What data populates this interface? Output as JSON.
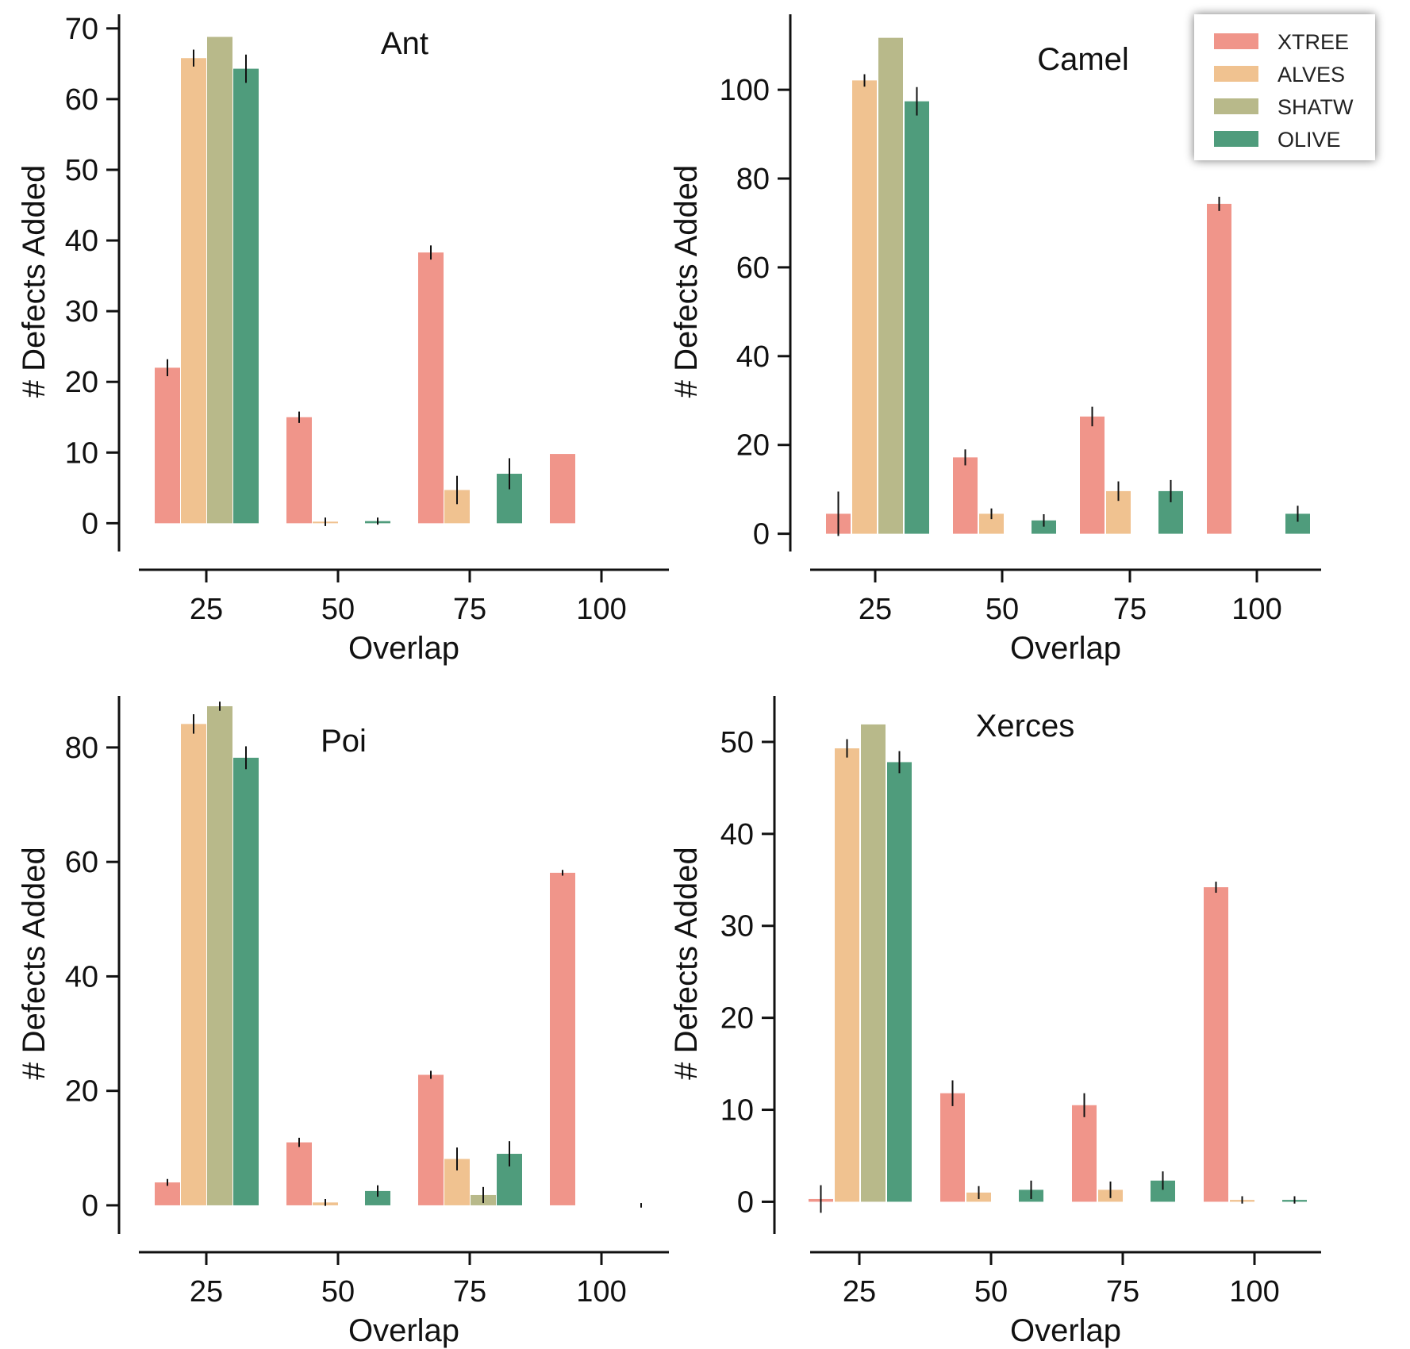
{
  "colors": {
    "XTREE": "#f0958a",
    "ALVES": "#f0c290",
    "SHATW": "#b8b98a",
    "OLIVE": "#4f9c7c"
  },
  "legend": {
    "placement": "top-right",
    "entries": [
      "XTREE",
      "ALVES",
      "SHATW",
      "OLIVE"
    ]
  },
  "chart_data": [
    {
      "type": "bar",
      "title": "Ant",
      "xlabel": "Overlap",
      "ylabel": "# Defects Added",
      "categories": [
        "25",
        "50",
        "75",
        "100"
      ],
      "ylim": [
        -4,
        72
      ],
      "yticks": [
        0,
        10,
        20,
        30,
        40,
        50,
        60,
        70
      ],
      "series": [
        {
          "name": "XTREE",
          "values": [
            22,
            15,
            38.3,
            9.8
          ],
          "errors": [
            1.2,
            0.8,
            1.0,
            0
          ]
        },
        {
          "name": "ALVES",
          "values": [
            65.8,
            0.2,
            4.7,
            null
          ],
          "errors": [
            1.2,
            0.6,
            2.0,
            0
          ]
        },
        {
          "name": "SHATW",
          "values": [
            68.8,
            null,
            null,
            null
          ],
          "errors": [
            0,
            0,
            0,
            0
          ]
        },
        {
          "name": "OLIVE",
          "values": [
            64.3,
            0.3,
            7.0,
            null
          ],
          "errors": [
            2.0,
            0.5,
            2.2,
            0
          ]
        }
      ]
    },
    {
      "type": "bar",
      "title": "Camel",
      "xlabel": "Overlap",
      "ylabel": "# Defects Added",
      "categories": [
        "25",
        "50",
        "75",
        "100"
      ],
      "ylim": [
        -4,
        117
      ],
      "yticks": [
        0,
        20,
        40,
        60,
        80,
        100
      ],
      "series": [
        {
          "name": "XTREE",
          "values": [
            4.5,
            17.2,
            26.4,
            74.3
          ],
          "errors": [
            5.0,
            1.8,
            2.2,
            1.6
          ]
        },
        {
          "name": "ALVES",
          "values": [
            102.1,
            4.5,
            9.6,
            null
          ],
          "errors": [
            1.4,
            1.2,
            2.2,
            0
          ]
        },
        {
          "name": "SHATW",
          "values": [
            111.7,
            null,
            null,
            null
          ],
          "errors": [
            0,
            0,
            0,
            0
          ]
        },
        {
          "name": "OLIVE",
          "values": [
            97.4,
            3.0,
            9.6,
            4.5
          ],
          "errors": [
            3.2,
            1.4,
            2.5,
            1.8
          ]
        }
      ]
    },
    {
      "type": "bar",
      "title": "Poi",
      "xlabel": "Overlap",
      "ylabel": "# Defects Added",
      "categories": [
        "25",
        "50",
        "75",
        "100"
      ],
      "ylim": [
        -5,
        89
      ],
      "yticks": [
        0,
        20,
        40,
        60,
        80
      ],
      "series": [
        {
          "name": "XTREE",
          "values": [
            4.0,
            11.0,
            22.8,
            58.1
          ],
          "errors": [
            0.6,
            0.8,
            0.7,
            0.5
          ]
        },
        {
          "name": "ALVES",
          "values": [
            84.1,
            0.5,
            8.1,
            null
          ],
          "errors": [
            1.7,
            0.6,
            2.0,
            0
          ]
        },
        {
          "name": "SHATW",
          "values": [
            87.2,
            null,
            1.8,
            null
          ],
          "errors": [
            0.8,
            0,
            1.4,
            0
          ]
        },
        {
          "name": "OLIVE",
          "values": [
            78.2,
            2.5,
            9.0,
            0
          ],
          "errors": [
            2.0,
            1.0,
            2.2,
            0.4
          ]
        }
      ]
    },
    {
      "type": "bar",
      "title": "Xerces",
      "xlabel": "Overlap",
      "ylabel": "# Defects Added",
      "categories": [
        "25",
        "50",
        "75",
        "100"
      ],
      "ylim": [
        -3.5,
        55
      ],
      "yticks": [
        0,
        10,
        20,
        30,
        40,
        50
      ],
      "series": [
        {
          "name": "XTREE",
          "values": [
            0.3,
            11.8,
            10.5,
            34.2
          ],
          "errors": [
            1.5,
            1.4,
            1.3,
            0.6
          ]
        },
        {
          "name": "ALVES",
          "values": [
            49.3,
            1.0,
            1.3,
            0.2
          ],
          "errors": [
            1.0,
            0.7,
            0.9,
            0.4
          ]
        },
        {
          "name": "SHATW",
          "values": [
            51.9,
            null,
            null,
            null
          ],
          "errors": [
            0,
            0,
            0,
            0
          ]
        },
        {
          "name": "OLIVE",
          "values": [
            47.8,
            1.3,
            2.3,
            0.2
          ],
          "errors": [
            1.2,
            1.0,
            1.0,
            0.4
          ]
        }
      ]
    }
  ]
}
